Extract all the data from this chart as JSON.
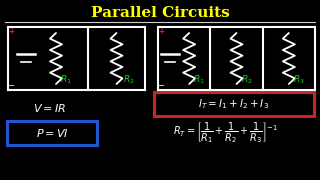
{
  "title": "Parallel Circuits",
  "title_color": "#FFFF00",
  "bg_color": "#000000",
  "white": "#FFFFFF",
  "gray": "#CCCCCC",
  "green": "#22CC22",
  "red": "#CC2222",
  "blue_box": "#2255CC",
  "red_box": "#CC2222",
  "figsize": [
    3.2,
    1.8
  ],
  "dpi": 100
}
